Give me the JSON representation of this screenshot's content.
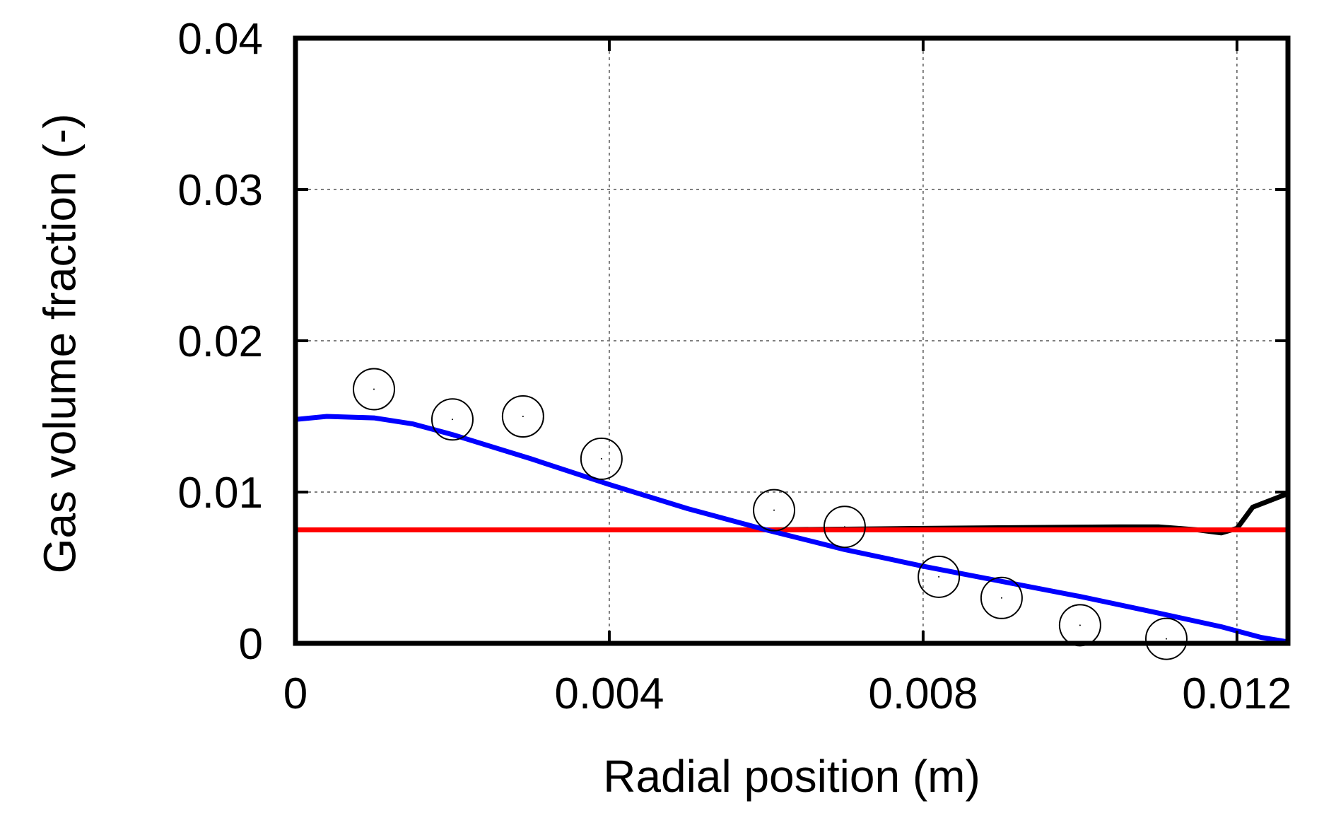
{
  "chart_data": {
    "type": "line",
    "title": "",
    "xlabel": "Radial position (m)",
    "ylabel": "Gas volume fraction (-)",
    "xlim": [
      0,
      0.01265
    ],
    "ylim": [
      0,
      0.04
    ],
    "grid": true,
    "xticks": [
      0,
      0.004,
      0.008,
      0.012
    ],
    "xtick_labels": [
      "0",
      "0.004",
      "0.008",
      "0.012"
    ],
    "yticks": [
      0,
      0.01,
      0.02,
      0.03,
      0.04
    ],
    "ytick_labels": [
      "0",
      "0.01",
      "0.02",
      "0.03",
      "0.04"
    ],
    "series": [
      {
        "name": "black curve",
        "kind": "line",
        "color": "#000000",
        "x": [
          0.0,
          0.002,
          0.004,
          0.006,
          0.008,
          0.0105,
          0.011,
          0.0115,
          0.0118,
          0.012,
          0.0122,
          0.01265
        ],
        "y": [
          0.0075,
          0.0075,
          0.0075,
          0.0075,
          0.0076,
          0.0077,
          0.0077,
          0.0075,
          0.0073,
          0.0076,
          0.009,
          0.0099
        ]
      },
      {
        "name": "red line",
        "kind": "line",
        "color": "#ff0000",
        "x": [
          0.0,
          0.01265
        ],
        "y": [
          0.0075,
          0.0075
        ]
      },
      {
        "name": "blue curve",
        "kind": "line",
        "color": "#0000ff",
        "x": [
          0.0,
          0.0004,
          0.001,
          0.0015,
          0.002,
          0.003,
          0.004,
          0.005,
          0.006,
          0.007,
          0.008,
          0.009,
          0.01,
          0.011,
          0.0118,
          0.0123,
          0.01265
        ],
        "y": [
          0.0148,
          0.015,
          0.0149,
          0.0145,
          0.0138,
          0.0122,
          0.0105,
          0.0089,
          0.0075,
          0.0062,
          0.0051,
          0.0041,
          0.0031,
          0.002,
          0.0011,
          0.0004,
          0.0001
        ]
      },
      {
        "name": "open circles",
        "kind": "scatter",
        "color": "#000000",
        "x": [
          0.001,
          0.002,
          0.0029,
          0.0039,
          0.0061,
          0.007,
          0.0082,
          0.009,
          0.01,
          0.0111
        ],
        "y": [
          0.0168,
          0.0148,
          0.015,
          0.0122,
          0.0088,
          0.0077,
          0.0044,
          0.003,
          0.0012,
          0.0003
        ]
      }
    ]
  }
}
